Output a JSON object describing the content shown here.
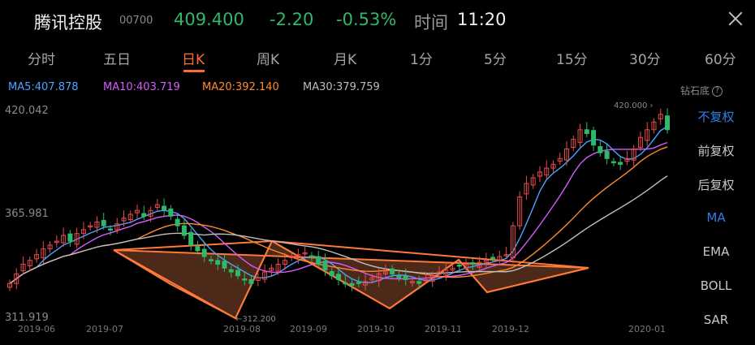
{
  "header": {
    "title": "腾讯控股",
    "code": "00700",
    "price": "409.400",
    "change": "-2.20",
    "change_pct": "-0.53%",
    "time_label": "时间",
    "time_value": "11:20",
    "down_color": "#2fb86a"
  },
  "tabs": [
    {
      "label": "分时"
    },
    {
      "label": "五日"
    },
    {
      "label": "日K",
      "active": true
    },
    {
      "label": "周K"
    },
    {
      "label": "月K"
    },
    {
      "label": "1分"
    },
    {
      "label": "5分"
    },
    {
      "label": "15分"
    },
    {
      "label": "30分"
    },
    {
      "label": "60分"
    }
  ],
  "ma_legend": [
    {
      "label": "MA5:407.878",
      "color": "#4aa3ff"
    },
    {
      "label": "MA10:403.719",
      "color": "#d65cff"
    },
    {
      "label": "MA20:392.140",
      "color": "#ff8a2b"
    },
    {
      "label": "MA30:379.759",
      "color": "#bdbdbd"
    }
  ],
  "side_panel": {
    "header": "钻石底",
    "help_icon": "question-circle-icon",
    "options": [
      {
        "label": "不复权",
        "active": true
      },
      {
        "label": "前复权"
      },
      {
        "label": "后复权"
      },
      {
        "label": "MA",
        "active": true
      },
      {
        "label": "EMA"
      },
      {
        "label": "BOLL"
      },
      {
        "label": "SAR"
      }
    ]
  },
  "chart_data": {
    "type": "candlestick",
    "y_max_label": "420.042",
    "y_mid_label": "365.981",
    "y_min_label": "311.919",
    "high_annotation": "420.000",
    "low_annotation": "312.200",
    "x_labels": [
      "2019-06",
      "2019-07",
      "2019-08",
      "2019-09",
      "2019-10",
      "2019-11",
      "2019-12",
      "2020-01"
    ],
    "ylim": [
      311.919,
      420.042
    ],
    "close_path": [
      330,
      335,
      340,
      342,
      345,
      348,
      350,
      352,
      355,
      352,
      356,
      358,
      360,
      362,
      360,
      358,
      361,
      364,
      366,
      368,
      365,
      368,
      371,
      368,
      365,
      360,
      355,
      350,
      347,
      344,
      342,
      340,
      338,
      336,
      334,
      332,
      330,
      333,
      336,
      338,
      340,
      342,
      344,
      345,
      346,
      344,
      340,
      337,
      334,
      332,
      330,
      329,
      330,
      331,
      333,
      335,
      336,
      335,
      333,
      332,
      331,
      330,
      332,
      334,
      336,
      337,
      338,
      339,
      340,
      340,
      341,
      342,
      343,
      344,
      345,
      360,
      375,
      382,
      385,
      388,
      390,
      392,
      395,
      400,
      405,
      410,
      408,
      402,
      398,
      395,
      393,
      392,
      395,
      400,
      406,
      410,
      414,
      418,
      410
    ],
    "up_color": "#e84b4b",
    "down_color": "#2fb86a",
    "pattern_fill": "#8a4a2e",
    "pattern_stroke": "#ff7a3a"
  }
}
